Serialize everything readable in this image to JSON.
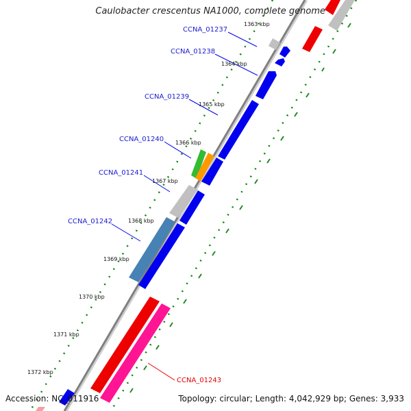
{
  "title": "Caulobacter crescentus NA1000, complete genome",
  "footer": {
    "accession": "Accession: NC_011916",
    "summary": "Topology: circular; Length: 4,042,929 bp; Genes: 3,933"
  },
  "ticks": [
    "1363 kbp",
    "1364 kbp",
    "1365 kbp",
    "1366 kbp",
    "1367 kbp",
    "1368 kbp",
    "1369 kbp",
    "1370 kbp",
    "1371 kbp",
    "1372 kbp"
  ],
  "genes": [
    "CCNA_01237",
    "CCNA_01238",
    "CCNA_01239",
    "CCNA_01240",
    "CCNA_01241",
    "CCNA_01242",
    "CCNA_01243"
  ],
  "colors": {
    "blue_genes": "#0000ee",
    "red_genes": "#ee0000",
    "pink_gene": "#ff1493",
    "gray_genes": "#c0c0c0",
    "green_gene": "#33bb33",
    "orange_gene": "#ff9900",
    "steelblue_gene": "#4682b4",
    "backbone": "#808080",
    "dotted_ring": "#008800",
    "tick_marks": "#228822"
  }
}
